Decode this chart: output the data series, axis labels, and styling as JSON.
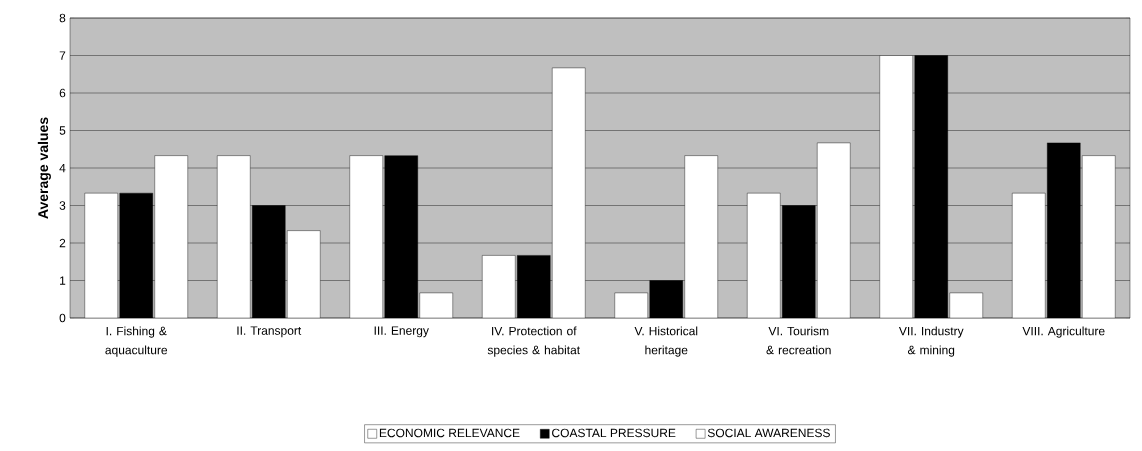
{
  "chart_data": {
    "type": "bar",
    "ylabel": "Average values",
    "categories": [
      "I. Fishing & aquaculture",
      "II. Transport",
      "III. Energy",
      "IV. Protection of species & habitat",
      "V. Historical heritage",
      "VI. Tourism & recreation",
      "VII. Industry & mining",
      "VIII. Agriculture"
    ],
    "series": [
      {
        "name": "ECONOMIC RELEVANCE",
        "color": "#ffffff",
        "values": [
          3.33,
          4.33,
          4.33,
          1.67,
          0.67,
          3.33,
          7,
          3.33
        ]
      },
      {
        "name": "COASTAL PRESSURE",
        "color": "#000000",
        "values": [
          3.33,
          3,
          4.33,
          1.67,
          1,
          3,
          7,
          4.67
        ]
      },
      {
        "name": "SOCIAL AWARENESS",
        "color": "#ffffff",
        "values": [
          4.33,
          2.33,
          0.67,
          6.67,
          4.33,
          4.67,
          0.67,
          4.33
        ]
      }
    ],
    "ylim": [
      0,
      8
    ],
    "yticks": [
      0,
      1,
      2,
      3,
      4,
      5,
      6,
      7,
      8
    ],
    "grid": "y",
    "legend": "bottom"
  }
}
